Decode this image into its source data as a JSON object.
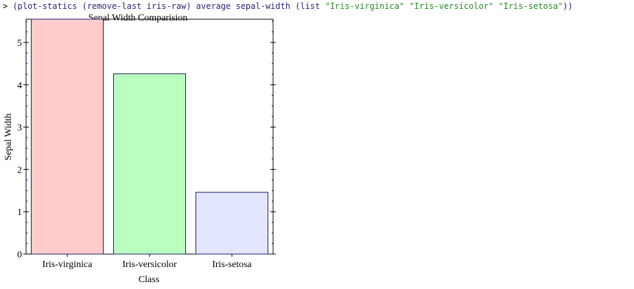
{
  "repl": {
    "prompt": ">",
    "tokens": [
      {
        "text": " (plot-statics (remove-last iris-raw) average sepal-width (list ",
        "kind": "code"
      },
      {
        "text": "\"Iris-virginica\"",
        "kind": "str"
      },
      {
        "text": " ",
        "kind": "code"
      },
      {
        "text": "\"Iris-versicolor\"",
        "kind": "str"
      },
      {
        "text": " ",
        "kind": "code"
      },
      {
        "text": "\"Iris-setosa\"",
        "kind": "str"
      },
      {
        "text": "))",
        "kind": "code"
      }
    ]
  },
  "chart_data": {
    "type": "bar",
    "title": "Sepal Width Comparision",
    "xlabel": "Class",
    "ylabel": "Sepal Width",
    "categories": [
      "Iris-virginica",
      "Iris-versicolor",
      "Iris-setosa"
    ],
    "values": [
      5.55,
      4.26,
      1.46
    ],
    "colors": [
      "#ffcccc",
      "#b8ffc0",
      "#e2e6ff"
    ],
    "bar_stroke": "#1a1a6e",
    "ylim": [
      0,
      5.55
    ],
    "yticks": [
      0,
      1,
      2,
      3,
      4,
      5
    ],
    "y_minor_step": 0.25,
    "grid": false,
    "legend": "none"
  }
}
